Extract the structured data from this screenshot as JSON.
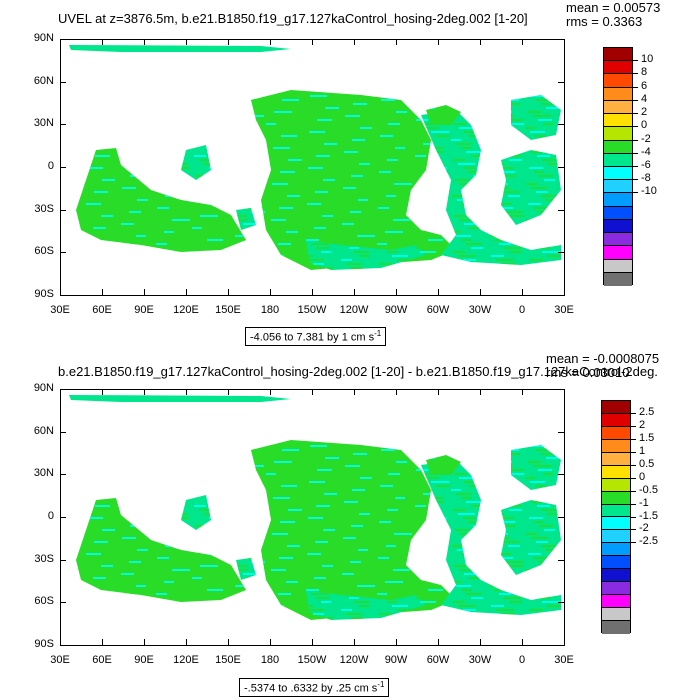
{
  "top": {
    "title": "UVEL at z=3876.5m, b.e21.B1850.f19_g17.127kaControl_hosing-2deg.002 [1-20]",
    "mean": "mean = 0.00573",
    "rms": "rms = 0.3363",
    "caption": "-4.056 to 7.381 by 1 cm s",
    "caption_sup": "-1",
    "colorbar_labels": [
      "10",
      "8",
      "6",
      "4",
      "2",
      "0",
      "-2",
      "-4",
      "-6",
      "-8",
      "-10"
    ]
  },
  "bottom": {
    "title": "b.e21.B1850.f19_g17.127kaControl_hosing-2deg.002 [1-20] - b.e21.B1850.f19_g17.127kaControl-2deg.",
    "mean": "mean = -0.0008075",
    "rms": "rms = 0.03010",
    "caption": "-.5374 to .6332 by .25 cm s",
    "caption_sup": "-1",
    "colorbar_labels": [
      "2.5",
      "2",
      "1.5",
      "1",
      "0.5",
      "0",
      "-0.5",
      "-1",
      "-1.5",
      "-2",
      "-2.5"
    ]
  },
  "lat_labels": [
    "90N",
    "60N",
    "30N",
    "0",
    "30S",
    "60S",
    "90S"
  ],
  "lon_labels": [
    "30E",
    "60E",
    "90E",
    "120E",
    "150E",
    "180",
    "150W",
    "120W",
    "90W",
    "60W",
    "30W",
    "0",
    "30E"
  ],
  "colors": {
    "palette": [
      "#a00000",
      "#e00000",
      "#ff4a00",
      "#ff8c1a",
      "#ffb040",
      "#ffe000",
      "#b4e600",
      "#28dc28",
      "#00e68c",
      "#00ffff",
      "#20d0ff",
      "#009cff",
      "#0050ff",
      "#1010d0",
      "#8a2be2",
      "#ff00ff",
      "#c8c8c8",
      "#707070"
    ],
    "field_main": "#00e68c",
    "field_green": "#28dc28",
    "field_cyan": "#00ffff"
  }
}
